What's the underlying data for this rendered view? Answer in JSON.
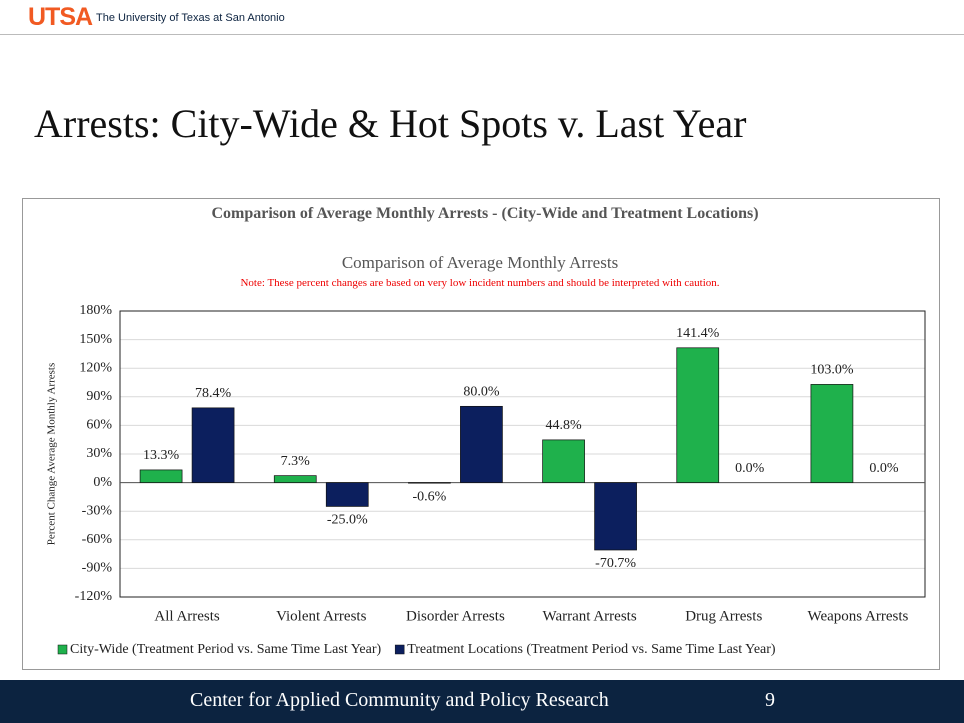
{
  "header": {
    "logo": "UTSA",
    "university": "The University of Texas at San Antonio"
  },
  "slide": {
    "title": "Arrests: City-Wide & Hot Spots v. Last Year"
  },
  "chart_data": {
    "type": "bar",
    "title": "Comparison of Average Monthly Arrests - (City-Wide and Treatment Locations)",
    "subtitle": "Comparison of Average Monthly Arrests",
    "note": "Note: These percent changes are based on very low incident numbers and should be interpreted with caution.",
    "y_label": "Percent Change Average Monthly Arrests",
    "categories": [
      "All Arrests",
      "Violent Arrests",
      "Disorder Arrests",
      "Warrant Arrests",
      "Drug Arrests",
      "Weapons Arrests"
    ],
    "series": [
      {
        "name": "City-Wide (Treatment Period vs. Same Time Last Year)",
        "color": "#1fb14c",
        "values": [
          13.3,
          7.3,
          -0.6,
          44.8,
          141.4,
          103.0
        ],
        "value_labels": [
          "13.3%",
          "7.3%",
          "-0.6%",
          "44.8%",
          "141.4%",
          "103.0%"
        ]
      },
      {
        "name": "Treatment Locations (Treatment Period vs. Same Time Last Year)",
        "color": "#0c1f5e",
        "values": [
          78.4,
          -25.0,
          80.0,
          -70.7,
          0.0,
          0.0
        ],
        "value_labels": [
          "78.4%",
          "-25.0%",
          "80.0%",
          "-70.7%",
          "0.0%",
          "0.0%"
        ]
      }
    ],
    "ylim": [
      -120,
      180
    ],
    "yticks": [
      {
        "value": -120,
        "label": "-120%"
      },
      {
        "value": -90,
        "label": "-90%"
      },
      {
        "value": -60,
        "label": "-60%"
      },
      {
        "value": -30,
        "label": "-30%"
      },
      {
        "value": 0,
        "label": "0%"
      },
      {
        "value": 30,
        "label": "30%"
      },
      {
        "value": 60,
        "label": "60%"
      },
      {
        "value": 90,
        "label": "90%"
      },
      {
        "value": 120,
        "label": "120%"
      },
      {
        "value": 150,
        "label": "150%"
      },
      {
        "value": 180,
        "label": "180%"
      }
    ],
    "grid": true,
    "legend": "bottom"
  },
  "footer": {
    "text": "Center for Applied Community and Policy Research",
    "page": "9"
  }
}
